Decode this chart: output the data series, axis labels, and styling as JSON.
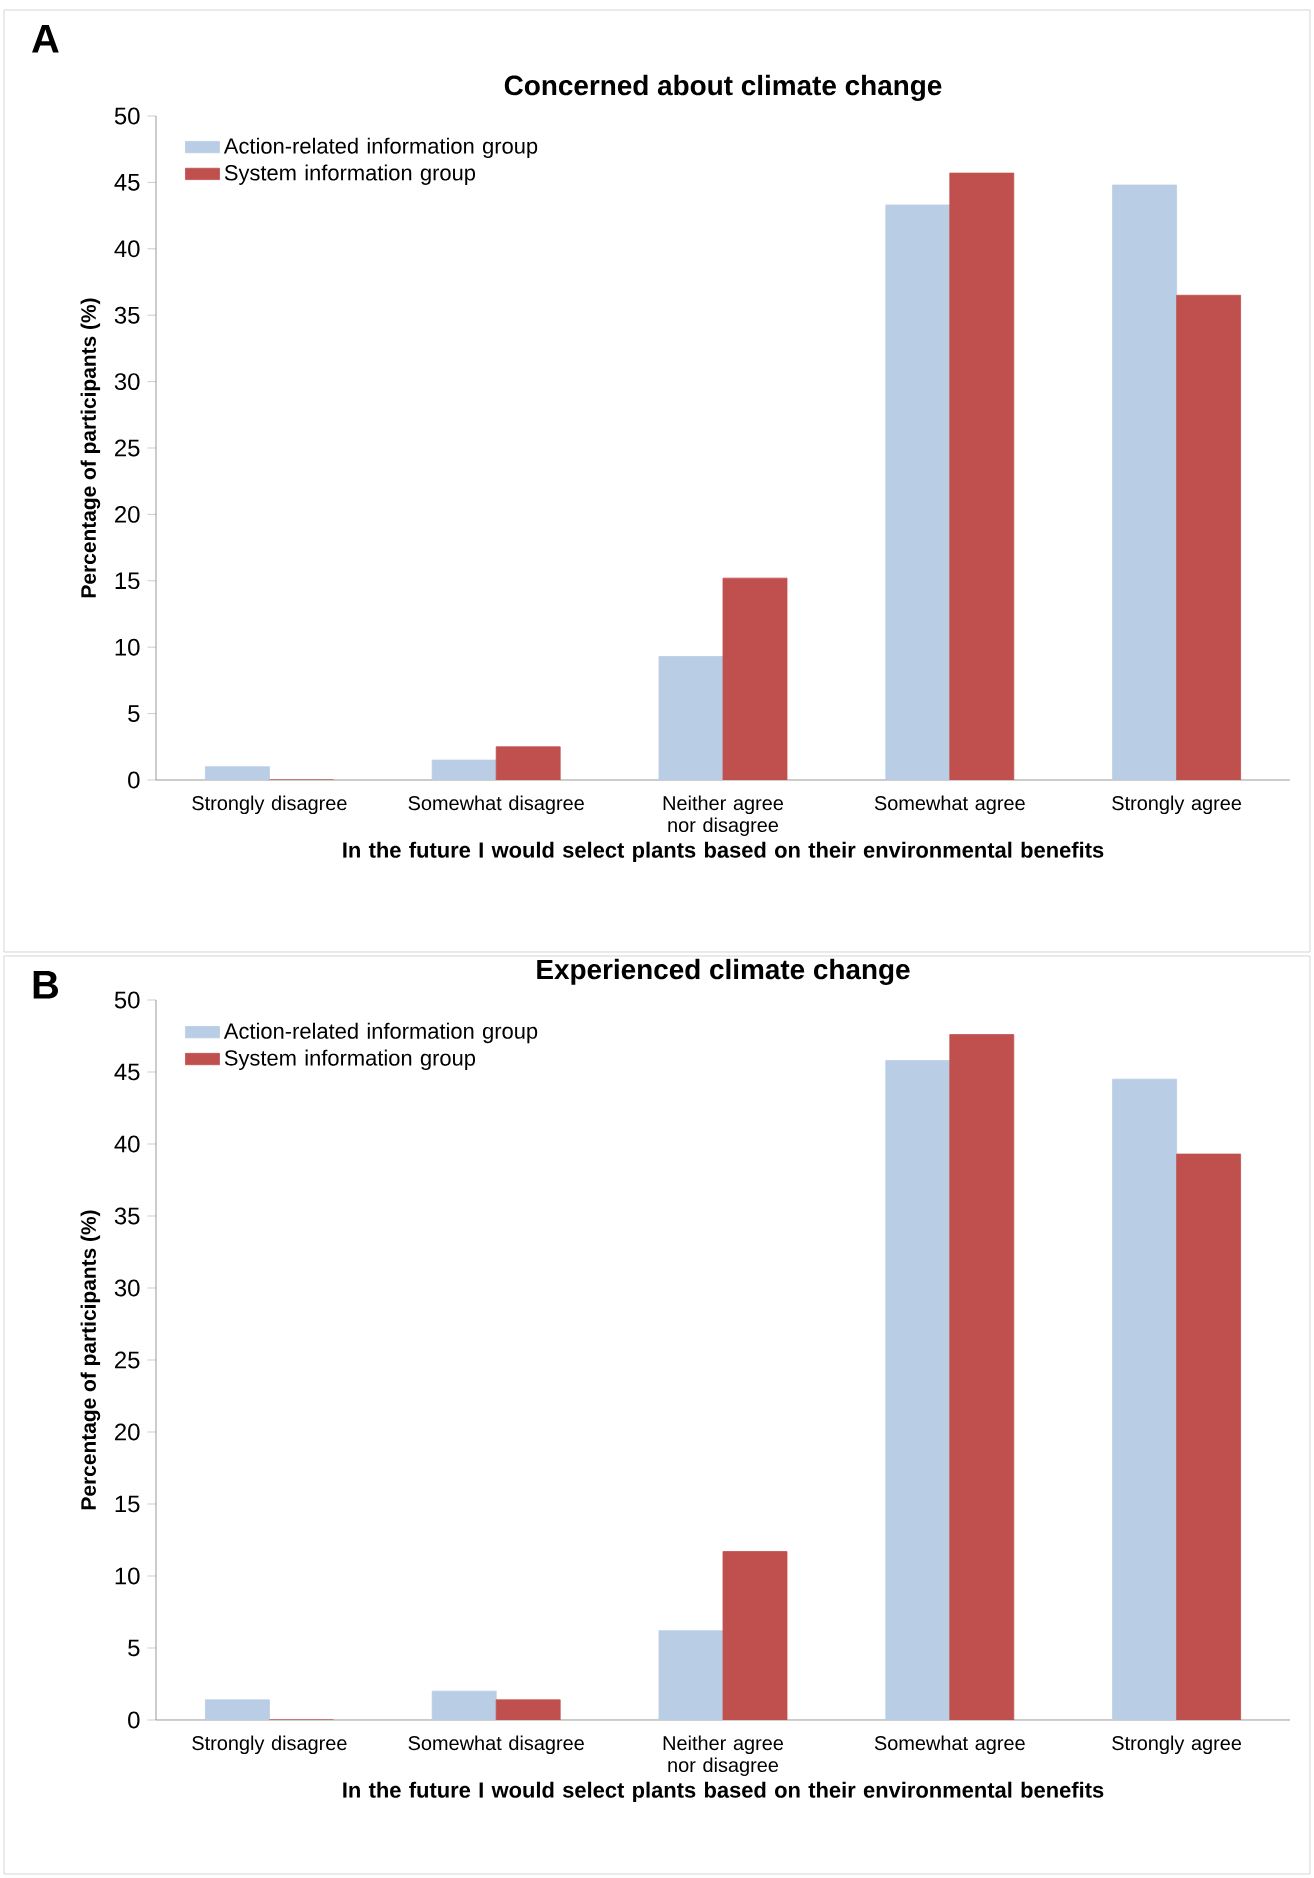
{
  "chart_data": [
    {
      "type": "bar",
      "title": "Concerned about climate change",
      "xlabel": "In the future I would select plants based on their environmental benefits",
      "ylabel": "Percentage of participants (%)",
      "annotations": [
        "A"
      ],
      "categories": [
        "Strongly disagree",
        "Somewhat disagree",
        "Neither agree nor disagree",
        "Somewhat agree",
        "Strongly agree"
      ],
      "series": [
        {
          "name": "Action-related information group",
          "color": "#b9cde5",
          "values": [
            1.0,
            1.5,
            9.3,
            43.3,
            44.8
          ]
        },
        {
          "name": "System information group",
          "color": "#c0504d",
          "values": [
            0,
            2.5,
            15.2,
            45.7,
            36.5
          ]
        }
      ],
      "ylim": [
        0,
        50
      ],
      "yticks": [
        0,
        5,
        10,
        15,
        20,
        25,
        30,
        35,
        40,
        45,
        50
      ],
      "legend": "top left"
    },
    {
      "type": "bar",
      "title": "Experienced climate change",
      "xlabel": "In the future I would select plants based on their environmental benefits",
      "ylabel": "Percentage of participants (%)",
      "annotations": [
        "B"
      ],
      "categories": [
        "Strongly disagree",
        "Somewhat disagree",
        "Neither agree nor disagree",
        "Somewhat agree",
        "Strongly agree"
      ],
      "series": [
        {
          "name": "Action-related information group",
          "color": "#b9cde5",
          "values": [
            1.4,
            2.0,
            6.2,
            45.8,
            44.5
          ]
        },
        {
          "name": "System information group",
          "color": "#c0504d",
          "values": [
            0,
            1.4,
            11.7,
            47.6,
            39.3
          ]
        }
      ],
      "ylim": [
        0,
        50
      ],
      "yticks": [
        0,
        5,
        10,
        15,
        20,
        25,
        30,
        35,
        40,
        45,
        50
      ],
      "legend": "top left"
    }
  ]
}
